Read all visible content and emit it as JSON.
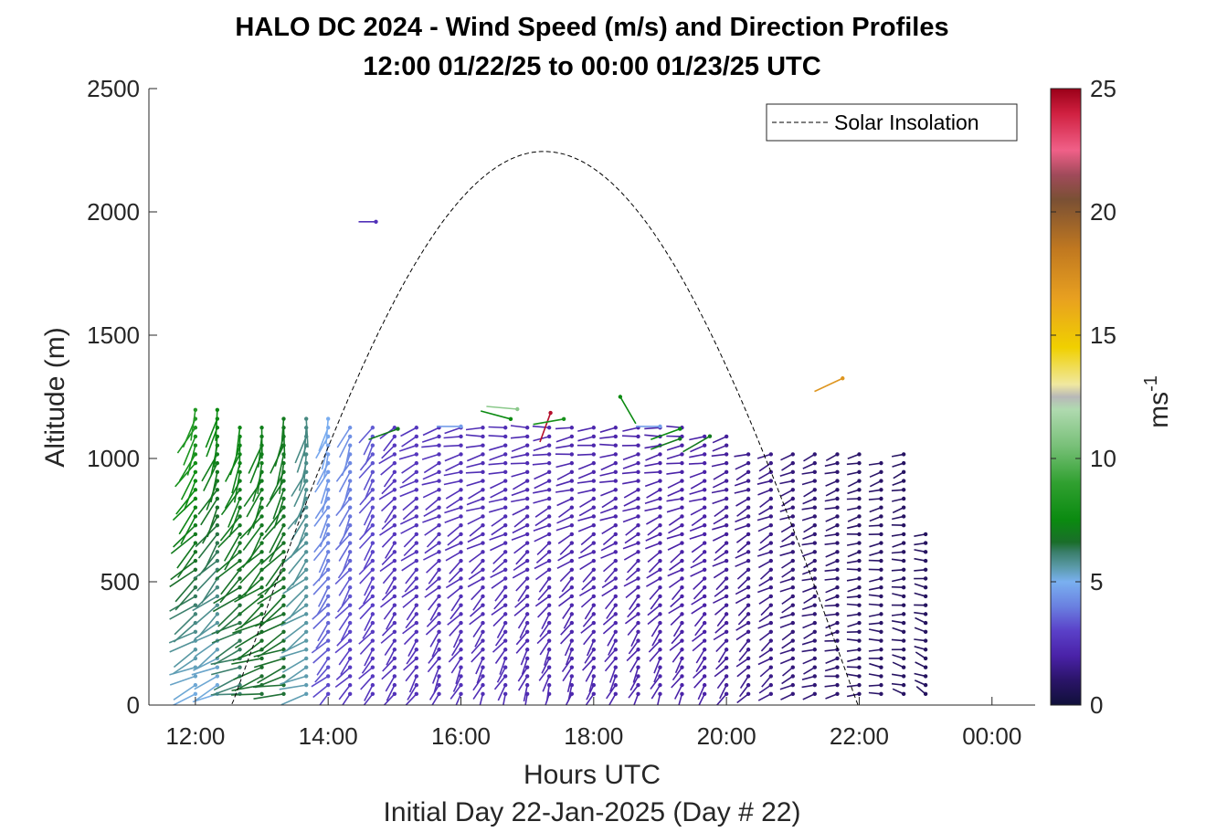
{
  "chart_data": {
    "type": "quiver",
    "title": "HALO DC 2024 - Wind Speed (m/s) and Direction Profiles",
    "subtitle": "12:00 01/22/25 to 00:00 01/23/25  UTC",
    "xlabel": "Hours UTC",
    "xlabel2": "Initial Day 22-Jan-2025 (Day # 22)",
    "ylabel": "Altitude (m)",
    "xlim": [
      11.3,
      24.65
    ],
    "ylim": [
      0,
      2500
    ],
    "x_ticks": [
      12,
      14,
      16,
      18,
      20,
      22,
      24
    ],
    "x_tick_labels": [
      "12:00",
      "14:00",
      "16:00",
      "18:00",
      "20:00",
      "22:00",
      "00:00"
    ],
    "y_ticks": [
      0,
      500,
      1000,
      1500,
      2000,
      2500
    ],
    "y_tick_labels": [
      "0",
      "500",
      "1000",
      "1500",
      "2000",
      "2500"
    ],
    "legend": {
      "entries": [
        "Solar Insolation"
      ],
      "location": "top-right",
      "line_style": "dashed",
      "color": "#000000"
    },
    "colorbar": {
      "label": "ms",
      "label_exponent": "-1",
      "range": [
        0,
        25
      ],
      "ticks": [
        0,
        5,
        10,
        15,
        20,
        25
      ],
      "tick_labels": [
        "0",
        "5",
        "10",
        "15",
        "20",
        "25"
      ],
      "colormap": [
        [
          0,
          "#10103a"
        ],
        [
          1,
          "#2a1468"
        ],
        [
          2,
          "#4a22a8"
        ],
        [
          3,
          "#5a40c8"
        ],
        [
          4,
          "#6a80e0"
        ],
        [
          5,
          "#7ab0f0"
        ],
        [
          5.6,
          "#5a9aa8"
        ],
        [
          6.2,
          "#3a7e6a"
        ],
        [
          6.6,
          "#1a6e2a"
        ],
        [
          7.5,
          "#0a8a10"
        ],
        [
          9,
          "#30a030"
        ],
        [
          10.5,
          "#78c078"
        ],
        [
          12,
          "#b0dab0"
        ],
        [
          12.5,
          "#b8b8b8"
        ],
        [
          13,
          "#f0e8a0"
        ],
        [
          14.5,
          "#f0d000"
        ],
        [
          16.5,
          "#e8a020"
        ],
        [
          18.5,
          "#c07820"
        ],
        [
          20.5,
          "#7a5034"
        ],
        [
          21.5,
          "#a04a5a"
        ],
        [
          22.5,
          "#f06088"
        ],
        [
          24,
          "#d02040"
        ],
        [
          25,
          "#9a0018"
        ]
      ]
    },
    "solar_insolation": {
      "sunrise_hour": 12.55,
      "sunset_hour": 21.98,
      "peak_altitude_equiv": 2245,
      "peak_hour": 17.25
    },
    "profile_hours": [
      12.0,
      12.33,
      12.67,
      13.0,
      13.33,
      13.67,
      14.0,
      14.33,
      14.67,
      15.0,
      15.33,
      15.67,
      16.0,
      16.33,
      16.67,
      17.0,
      17.33,
      17.67,
      18.0,
      18.33,
      18.67,
      19.0,
      19.33,
      19.67,
      20.0,
      20.33,
      20.67,
      21.0,
      21.33,
      21.67,
      22.0,
      22.33,
      22.67,
      23.0
    ],
    "profile_top_m": [
      1200,
      1210,
      1160,
      1160,
      1170,
      1180,
      1170,
      1150,
      1140,
      1130,
      1160,
      1160,
      1150,
      1160,
      1150,
      1160,
      1140,
      1150,
      1160,
      1140,
      1140,
      1130,
      1150,
      1100,
      1090,
      1040,
      1030,
      1030,
      1030,
      1040,
      1020,
      1010,
      1030,
      700
    ],
    "profile_speed_low_ms": [
      5,
      5,
      6,
      6.5,
      6.5,
      5.5,
      3,
      2.6,
      2.6,
      2.5,
      2.5,
      2.5,
      2.5,
      2.4,
      2.4,
      2.3,
      2.3,
      2.2,
      2.2,
      2.2,
      2.1,
      2.1,
      2.0,
      2.0,
      1.8,
      1.6,
      1.5,
      1.3,
      1.2,
      1.1,
      1.0,
      1.0,
      0.9,
      0.8
    ],
    "profile_speed_high_ms": [
      8.5,
      7.5,
      7.5,
      7.2,
      7.0,
      6.0,
      5.0,
      4.5,
      3.5,
      2.8,
      2.7,
      2.6,
      2.5,
      2.4,
      2.4,
      2.3,
      2.3,
      2.2,
      2.2,
      2.1,
      2.1,
      2.0,
      2.0,
      2.0,
      1.8,
      1.6,
      1.5,
      1.3,
      1.2,
      1.1,
      1.0,
      1.0,
      0.9,
      0.8
    ],
    "profile_dir_low_deg": [
      250,
      250,
      260,
      260,
      260,
      255,
      230,
      225,
      220,
      215,
      210,
      200,
      200,
      200,
      200,
      195,
      195,
      195,
      200,
      200,
      200,
      200,
      205,
      210,
      215,
      220,
      230,
      240,
      250,
      260,
      270,
      280,
      290,
      300
    ],
    "profile_dir_high_deg": [
      200,
      190,
      185,
      185,
      185,
      185,
      195,
      200,
      210,
      230,
      250,
      260,
      265,
      270,
      270,
      270,
      270,
      270,
      270,
      270,
      270,
      270,
      270,
      265,
      260,
      255,
      250,
      250,
      250,
      250,
      250,
      245,
      240,
      245
    ],
    "isolated_barbs": [
      {
        "hour": 14.72,
        "alt_m": 1960,
        "speed_ms": 2.5,
        "dir_deg": 270
      },
      {
        "hour": 21.75,
        "alt_m": 1325,
        "speed_ms": 17.0,
        "dir_deg": 245
      },
      {
        "hour": 17.35,
        "alt_m": 1185,
        "speed_ms": 24.5,
        "dir_deg": 200
      },
      {
        "hour": 16.85,
        "alt_m": 1200,
        "speed_ms": 11.0,
        "dir_deg": 275
      },
      {
        "hour": 16.75,
        "alt_m": 1160,
        "speed_ms": 7.5,
        "dir_deg": 285
      },
      {
        "hour": 17.55,
        "alt_m": 1160,
        "speed_ms": 8.0,
        "dir_deg": 260
      },
      {
        "hour": 18.4,
        "alt_m": 1250,
        "speed_ms": 7.5,
        "dir_deg": 150
      },
      {
        "hour": 19.3,
        "alt_m": 1120,
        "speed_ms": 7.5,
        "dir_deg": 250
      },
      {
        "hour": 19.3,
        "alt_m": 1080,
        "speed_ms": 7.0,
        "dir_deg": 250
      },
      {
        "hour": 19.75,
        "alt_m": 1090,
        "speed_ms": 7.0,
        "dir_deg": 240
      },
      {
        "hour": 19.0,
        "alt_m": 1130,
        "speed_ms": 4.6,
        "dir_deg": 270
      },
      {
        "hour": 16.0,
        "alt_m": 1130,
        "speed_ms": 4.6,
        "dir_deg": 270
      },
      {
        "hour": 15.05,
        "alt_m": 1120,
        "speed_ms": 7.0,
        "dir_deg": 250
      }
    ]
  }
}
